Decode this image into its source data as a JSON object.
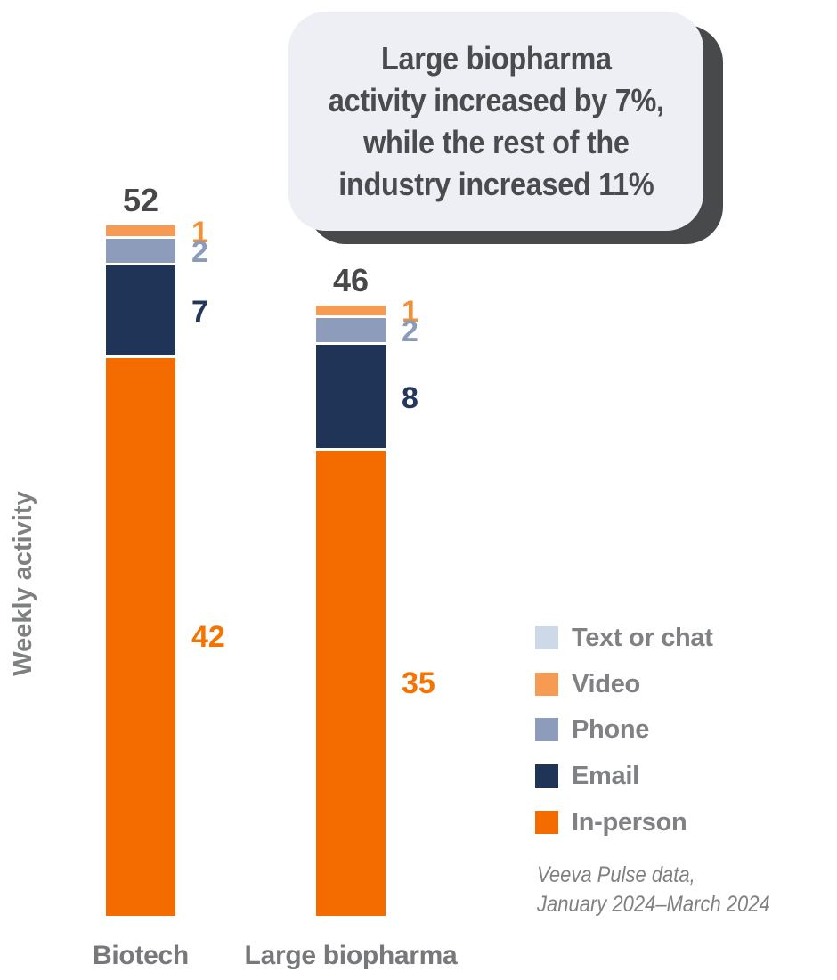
{
  "callout": {
    "text": "Large biopharma\nactivity increased by 7%,\nwhile the rest of the\nindustry increased 11%"
  },
  "y_axis_label": "Weekly activity",
  "source": {
    "line1": "Veeva Pulse data,",
    "line2": "January 2024–March 2024"
  },
  "chart_data": {
    "type": "bar",
    "stacked": true,
    "title": "",
    "ylabel": "Weekly activity",
    "xlabel": "",
    "grid": false,
    "legend_position": "right",
    "annotation": "Large biopharma activity increased by 7%, while the rest of the industry increased 11%",
    "categories": [
      "Biotech",
      "Large biopharma"
    ],
    "totals": [
      52,
      46
    ],
    "series": [
      {
        "name": "Text or chat",
        "color": "#cdd9e8",
        "label_color": "#cdd9e8",
        "values": [
          0,
          0
        ]
      },
      {
        "name": "Video",
        "color": "#f79a52",
        "label_color": "#ef9038",
        "values": [
          1,
          1
        ]
      },
      {
        "name": "Phone",
        "color": "#8c9cba",
        "label_color": "#8b9cba",
        "values": [
          2,
          2
        ]
      },
      {
        "name": "Email",
        "color": "#1f3456",
        "label_color": "#23365c",
        "values": [
          7,
          8
        ]
      },
      {
        "name": "In-person",
        "color": "#f46c00",
        "label_color": "#f57300",
        "values": [
          42,
          35
        ]
      }
    ]
  },
  "colors": {
    "total_label": "#48484a",
    "category_label": "#77787b",
    "legend_text": "#808184",
    "axis_text": "#7f8082",
    "callout_bg": "#edeff4",
    "callout_shadow": "#48494b",
    "callout_text": "#4a4b4d",
    "source_text": "#7f8082",
    "background": "#ffffff"
  }
}
